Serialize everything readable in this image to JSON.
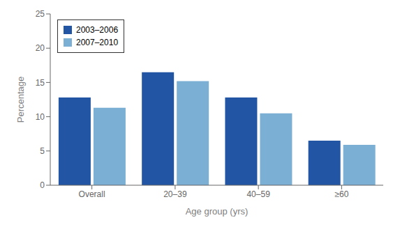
{
  "chart_data": {
    "type": "bar",
    "categories": [
      "Overall",
      "20–39",
      "40–59",
      "≥60"
    ],
    "series": [
      {
        "name": "2003–2006",
        "color": "#2255A4",
        "values": [
          12.8,
          16.5,
          12.8,
          6.5
        ]
      },
      {
        "name": "2007–2010",
        "color": "#7BAFD4",
        "values": [
          11.3,
          15.2,
          10.5,
          5.9
        ]
      }
    ],
    "xlabel": "Age group (yrs)",
    "ylabel": "Percentage",
    "ylim": [
      0,
      25
    ],
    "yticks": [
      0,
      5,
      10,
      15,
      20,
      25
    ],
    "grid": false,
    "legend": "upper left"
  }
}
